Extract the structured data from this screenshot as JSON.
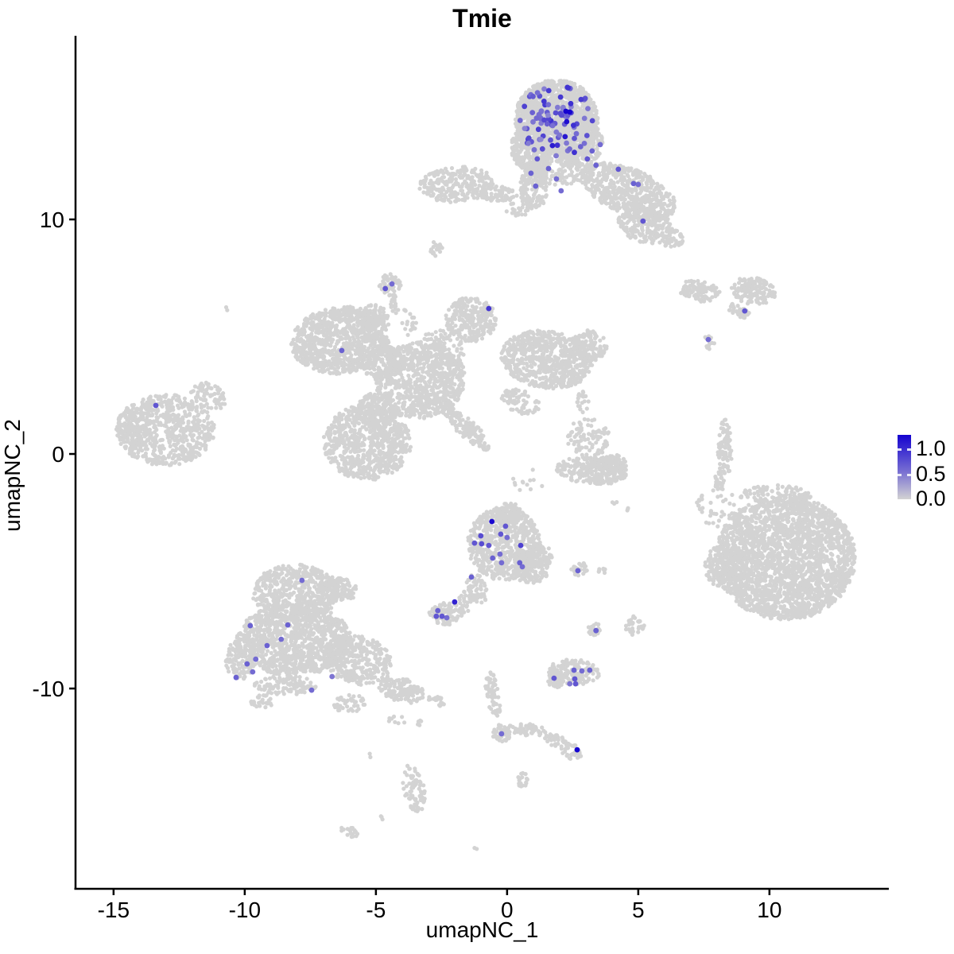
{
  "title": "Tmie",
  "legend": {
    "labels": [
      "1.0",
      "0.5",
      "0.0"
    ],
    "values": [
      1.0,
      0.5,
      0.0
    ],
    "bar_top_value": 1.27
  },
  "colors": {
    "background": "#ffffff",
    "axis": "#000000",
    "low": "#d3d3d3",
    "high": "#1503d0"
  },
  "chart_data": {
    "type": "scatter",
    "title": "Tmie",
    "xlabel": "umapNC_1",
    "ylabel": "umapNC_2",
    "xlim": [
      -16.45,
      14.55
    ],
    "ylim": [
      -18.54,
      17.83
    ],
    "x_ticks": [
      -15,
      -10,
      -5,
      0,
      5,
      10
    ],
    "y_ticks": [
      -10,
      0,
      10
    ],
    "grid": false,
    "legend_position": "right",
    "point_radius_px": 2.6,
    "highlight_radius_px": 3.4,
    "blob_format": [
      "cx",
      "cy",
      "rx",
      "ry",
      "rot_deg",
      "n_cells"
    ],
    "background_clusters": [
      [
        1.88,
        14.27,
        1.58,
        1.69,
        0,
        1300
      ],
      [
        0.91,
        13.08,
        0.76,
        1.02,
        0,
        260
      ],
      [
        2.79,
        13.25,
        0.85,
        1.02,
        0,
        260
      ],
      [
        1.88,
        12.07,
        1.21,
        0.61,
        0,
        180
      ],
      [
        1.03,
        11.39,
        0.52,
        1.02,
        0,
        140
      ],
      [
        -1.91,
        11.49,
        1.45,
        0.75,
        5,
        260
      ],
      [
        -0.39,
        11.12,
        0.67,
        0.34,
        0,
        70
      ],
      [
        0.36,
        10.54,
        0.45,
        0.51,
        0,
        30
      ],
      [
        4.61,
        11.22,
        1.97,
        0.95,
        -25,
        550
      ],
      [
        5.27,
        9.76,
        1.06,
        0.75,
        -20,
        220
      ],
      [
        6.27,
        9.19,
        0.45,
        0.41,
        0,
        35
      ],
      [
        -2.7,
        8.75,
        0.24,
        0.31,
        0,
        22
      ],
      [
        -4.45,
        7.19,
        0.42,
        0.51,
        0,
        55
      ],
      [
        -4.27,
        6.37,
        0.18,
        0.41,
        0,
        18
      ],
      [
        -3.73,
        5.63,
        0.36,
        0.61,
        0,
        20
      ],
      [
        -6.36,
        4.85,
        1.88,
        1.42,
        10,
        850
      ],
      [
        -5.03,
        5.86,
        0.61,
        0.47,
        -35,
        70
      ],
      [
        -1.39,
        5.73,
        0.97,
        0.95,
        0,
        260
      ],
      [
        -2.52,
        4.44,
        0.91,
        0.85,
        0,
        90
      ],
      [
        1.52,
        4.03,
        1.76,
        1.22,
        -10,
        650
      ],
      [
        3.09,
        4.61,
        0.76,
        0.68,
        0,
        130
      ],
      [
        -3.33,
        3.15,
        1.76,
        1.63,
        20,
        750
      ],
      [
        -4.79,
        3.93,
        0.91,
        0.68,
        0,
        140
      ],
      [
        -4.94,
        1.9,
        0.76,
        0.75,
        0,
        140
      ],
      [
        -5.33,
        0.51,
        1.67,
        1.63,
        0,
        750
      ],
      [
        -1.82,
        1.46,
        1.27,
        0.27,
        -40,
        110
      ],
      [
        -1.39,
        0.75,
        0.97,
        0.2,
        -40,
        60
      ],
      [
        0.52,
        2.24,
        0.76,
        0.51,
        -20,
        70
      ],
      [
        -13.03,
        1.02,
        1.88,
        1.53,
        0,
        650
      ],
      [
        -11.39,
        2.51,
        0.76,
        0.51,
        -40,
        70
      ],
      [
        -14.33,
        1.05,
        0.55,
        0.95,
        0,
        90
      ],
      [
        3.09,
        0.71,
        0.85,
        0.85,
        0,
        90
      ],
      [
        3.24,
        -0.71,
        1.36,
        0.58,
        -5,
        260
      ],
      [
        4.0,
        -0.47,
        0.55,
        0.47,
        0,
        90
      ],
      [
        2.88,
        2.24,
        0.24,
        0.51,
        0,
        20
      ],
      [
        4.09,
        -2.07,
        0.09,
        0.1,
        0,
        3
      ],
      [
        8.3,
        0.2,
        0.27,
        1.29,
        0,
        85
      ],
      [
        8.09,
        -1.15,
        0.18,
        0.41,
        0,
        22
      ],
      [
        7.33,
        6.95,
        0.79,
        0.44,
        -10,
        100
      ],
      [
        9.39,
        6.95,
        0.85,
        0.58,
        -15,
        150
      ],
      [
        8.85,
        6.07,
        0.48,
        0.24,
        -35,
        32
      ],
      [
        7.7,
        4.78,
        0.24,
        0.31,
        0,
        18
      ],
      [
        -0.12,
        -3.83,
        1.39,
        1.56,
        0,
        650
      ],
      [
        0.91,
        -4.92,
        0.67,
        0.61,
        0,
        110
      ],
      [
        1.27,
        -4.37,
        0.45,
        0.51,
        0,
        70
      ],
      [
        0.06,
        -2.51,
        0.61,
        0.41,
        0,
        70
      ],
      [
        -1.15,
        -5.73,
        0.36,
        0.68,
        15,
        55
      ],
      [
        -1.61,
        -6.34,
        0.24,
        0.47,
        0,
        22
      ],
      [
        -2.3,
        -6.81,
        0.67,
        0.47,
        0,
        100
      ],
      [
        2.82,
        -4.92,
        0.39,
        0.27,
        0,
        32
      ],
      [
        3.61,
        -4.98,
        0.15,
        0.14,
        0,
        7
      ],
      [
        3.33,
        -7.46,
        0.27,
        0.27,
        0,
        22
      ],
      [
        -8.06,
        -5.9,
        1.67,
        1.19,
        0,
        550
      ],
      [
        -6.36,
        -5.8,
        0.67,
        0.51,
        0,
        90
      ],
      [
        -8.12,
        -7.93,
        2.18,
        1.53,
        0,
        1000
      ],
      [
        -5.7,
        -8.78,
        1.36,
        1.02,
        -20,
        320
      ],
      [
        -10.18,
        -8.78,
        0.55,
        0.85,
        0,
        110
      ],
      [
        -8.42,
        -9.86,
        1.21,
        0.41,
        0,
        110
      ],
      [
        -6.0,
        -10.64,
        0.61,
        0.41,
        0,
        45
      ],
      [
        -4.03,
        -10.07,
        0.91,
        0.51,
        -18,
        130
      ],
      [
        -2.73,
        -10.54,
        0.36,
        0.24,
        -10,
        22
      ],
      [
        -9.33,
        -10.54,
        0.45,
        0.27,
        0,
        30
      ],
      [
        -4.18,
        -11.36,
        0.36,
        0.2,
        0,
        9
      ],
      [
        -3.42,
        -11.46,
        0.18,
        0.17,
        0,
        5
      ],
      [
        -5.18,
        -12.85,
        0.09,
        0.1,
        0,
        2
      ],
      [
        -3.55,
        -14.27,
        0.39,
        1.02,
        10,
        80
      ],
      [
        -4.82,
        -15.53,
        0.09,
        0.1,
        0,
        3
      ],
      [
        -6.0,
        -16.1,
        0.36,
        0.24,
        -15,
        18
      ],
      [
        -0.55,
        -10.2,
        0.27,
        1.02,
        8,
        60
      ],
      [
        -0.21,
        -11.9,
        0.36,
        0.37,
        0,
        40
      ],
      [
        0.73,
        -11.76,
        0.76,
        0.27,
        -5,
        50
      ],
      [
        1.88,
        -12.24,
        0.55,
        0.27,
        -28,
        35
      ],
      [
        2.48,
        -12.71,
        0.39,
        0.34,
        0,
        30
      ],
      [
        0.61,
        -13.9,
        0.24,
        0.31,
        0,
        18
      ],
      [
        2.55,
        -9.29,
        0.97,
        0.54,
        -5,
        140
      ],
      [
        1.88,
        -9.63,
        0.36,
        0.34,
        0,
        35
      ],
      [
        10.61,
        -4.44,
        2.67,
        2.64,
        0,
        2300
      ],
      [
        8.3,
        -4.78,
        0.76,
        0.95,
        0,
        170
      ],
      [
        8.09,
        -2.34,
        0.91,
        0.85,
        0,
        45
      ],
      [
        10.21,
        -1.83,
        1.36,
        0.51,
        0,
        130
      ],
      [
        4.85,
        -7.32,
        0.39,
        0.41,
        0,
        30
      ],
      [
        4.61,
        -2.34,
        0.09,
        0.1,
        0,
        3
      ],
      [
        -10.7,
        6.17,
        0.09,
        0.1,
        0,
        2
      ],
      [
        -1.21,
        -16.85,
        0.09,
        0.07,
        0,
        2
      ],
      [
        0.82,
        -1.15,
        0.61,
        0.51,
        0,
        12
      ]
    ],
    "expressing_cluster": {
      "cx": 1.88,
      "cy": 14.22,
      "rx": 1.45,
      "ry": 1.55,
      "n": 88,
      "v_min": 0.35,
      "v_max": 0.8,
      "seed": 424242
    },
    "expressing_cells_format": [
      "x",
      "y",
      "value"
    ],
    "expressing_cells": [
      [
        2.24,
        14.61,
        1.0
      ],
      [
        2.39,
        14.58,
        1.0
      ],
      [
        2.27,
        14.17,
        0.95
      ],
      [
        2.21,
        13.53,
        0.9
      ],
      [
        1.73,
        13.15,
        0.88
      ],
      [
        1.15,
        12.58,
        0.6
      ],
      [
        1.58,
        12.17,
        0.55
      ],
      [
        1.88,
        11.73,
        0.5
      ],
      [
        0.91,
        11.97,
        0.55
      ],
      [
        2.06,
        11.22,
        0.5
      ],
      [
        3.24,
        12.92,
        0.55
      ],
      [
        3.55,
        13.19,
        0.5
      ],
      [
        1.09,
        11.42,
        0.55
      ],
      [
        3.06,
        12.58,
        0.6
      ],
      [
        3.39,
        12.31,
        0.55
      ],
      [
        4.24,
        12.14,
        0.6
      ],
      [
        4.82,
        11.53,
        0.55
      ],
      [
        5.0,
        11.49,
        0.5
      ],
      [
        5.18,
        9.93,
        0.6
      ],
      [
        -4.64,
        7.05,
        0.6
      ],
      [
        -4.39,
        7.25,
        0.5
      ],
      [
        -0.7,
        6.2,
        0.75
      ],
      [
        -6.3,
        4.41,
        0.55
      ],
      [
        -13.39,
        2.07,
        0.6
      ],
      [
        9.06,
        6.1,
        0.6
      ],
      [
        7.67,
        4.88,
        0.5
      ],
      [
        -0.58,
        -2.88,
        0.97
      ],
      [
        -0.06,
        -3.08,
        0.6
      ],
      [
        -0.24,
        -3.42,
        0.6
      ],
      [
        -1.0,
        -3.49,
        0.65
      ],
      [
        -1.24,
        -3.8,
        0.6
      ],
      [
        -0.97,
        -3.83,
        0.65
      ],
      [
        -0.7,
        -3.9,
        0.6
      ],
      [
        0.0,
        -3.56,
        0.5
      ],
      [
        0.52,
        -3.9,
        0.7
      ],
      [
        -0.27,
        -4.27,
        0.5
      ],
      [
        -0.55,
        -4.44,
        0.55
      ],
      [
        -0.21,
        -4.64,
        0.5
      ],
      [
        0.48,
        -4.64,
        0.55
      ],
      [
        0.58,
        -4.81,
        0.5
      ],
      [
        -1.36,
        -5.25,
        0.55
      ],
      [
        -2.64,
        -6.68,
        0.55
      ],
      [
        -2.7,
        -6.92,
        0.6
      ],
      [
        -2.48,
        -6.92,
        0.6
      ],
      [
        -2.3,
        -6.98,
        0.5
      ],
      [
        -2.0,
        -6.31,
        0.85
      ],
      [
        2.7,
        -4.98,
        0.55
      ],
      [
        3.39,
        -7.53,
        0.55
      ],
      [
        1.79,
        -9.56,
        0.6
      ],
      [
        2.55,
        -9.22,
        0.55
      ],
      [
        2.85,
        -9.25,
        0.5
      ],
      [
        3.15,
        -9.22,
        0.55
      ],
      [
        2.58,
        -9.59,
        0.6
      ],
      [
        2.61,
        -9.8,
        0.6
      ],
      [
        2.39,
        -9.8,
        0.45
      ],
      [
        -0.21,
        -11.93,
        0.5
      ],
      [
        2.67,
        -12.61,
        1.0
      ],
      [
        -7.82,
        -5.39,
        0.5
      ],
      [
        -8.36,
        -7.29,
        0.55
      ],
      [
        -9.79,
        -7.32,
        0.55
      ],
      [
        -8.61,
        -7.9,
        0.5
      ],
      [
        -9.15,
        -8.17,
        0.55
      ],
      [
        -9.58,
        -8.75,
        0.5
      ],
      [
        -9.91,
        -8.95,
        0.55
      ],
      [
        -9.7,
        -9.29,
        0.5
      ],
      [
        -10.33,
        -9.53,
        0.55
      ],
      [
        -6.67,
        -9.49,
        0.45
      ],
      [
        -7.45,
        -10.07,
        0.5
      ]
    ]
  }
}
